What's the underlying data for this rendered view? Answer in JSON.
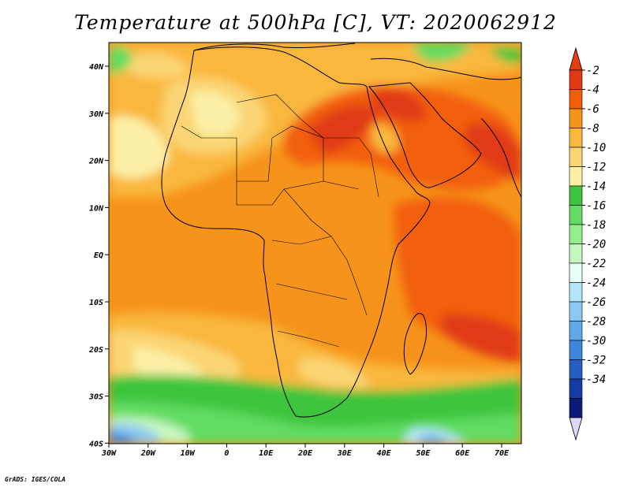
{
  "title": "Temperature at 500hPa [C], VT: 2020062912",
  "credit": "GrADS: IGES/COLA",
  "map": {
    "lon_ticks": [
      "30W",
      "20W",
      "10W",
      "0",
      "10E",
      "20E",
      "30E",
      "40E",
      "50E",
      "60E",
      "70E"
    ],
    "lat_ticks": [
      "40N",
      "30N",
      "20N",
      "10N",
      "EQ",
      "10S",
      "20S",
      "30S",
      "40S"
    ]
  },
  "colorbar": {
    "labels": [
      "-2",
      "-4",
      "-6",
      "-8",
      "-10",
      "-12",
      "-14",
      "-16",
      "-18",
      "-20",
      "-22",
      "-24",
      "-26",
      "-28",
      "-30",
      "-32",
      "-34"
    ],
    "colors": [
      "#e03a14",
      "#f25e0a",
      "#f6931a",
      "#f9b73e",
      "#fbd574",
      "#fcf0a6",
      "#3cc53c",
      "#62dc62",
      "#94ee8a",
      "#c6f6c0",
      "#e8fff8",
      "#b4e6fa",
      "#8cc8f2",
      "#5ea8ea",
      "#3c86dc",
      "#245ec4",
      "#143ca8",
      "#0c1a78"
    ],
    "top_arrow_color": "#e63c12",
    "bottom_arrow_color": "#dcd8f6"
  }
}
